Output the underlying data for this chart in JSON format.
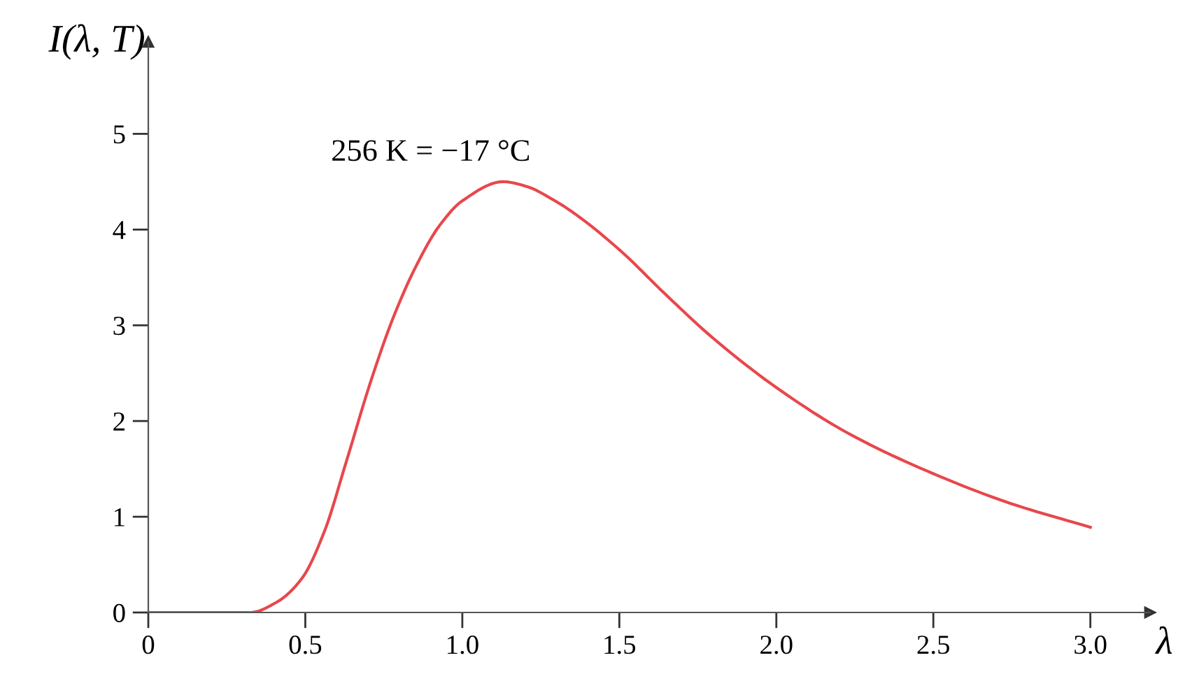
{
  "chart_data": {
    "type": "line",
    "xlabel": "λ",
    "ylabel": "I(λ, T)",
    "annotations": [
      "256 K = −17 °C"
    ],
    "x": [
      0,
      0.325,
      0.41,
      0.49,
      0.56,
      0.63,
      0.707,
      0.78,
      0.853,
      0.927,
      1.0,
      1.13,
      1.205,
      1.29,
      1.352,
      1.5,
      1.645,
      1.79,
      2.0,
      2.23,
      2.5,
      2.745,
      3.0
    ],
    "series": [
      {
        "color": "#e8474c",
        "values": [
          0,
          0,
          0.11,
          0.36,
          0.84,
          1.57,
          2.4,
          3.08,
          3.62,
          4.04,
          4.3,
          4.5,
          4.45,
          4.31,
          4.18,
          3.79,
          3.33,
          2.89,
          2.35,
          1.87,
          1.45,
          1.14,
          0.89
        ]
      }
    ],
    "xlim": [
      0,
      3.19
    ],
    "ylim": [
      0,
      5.96
    ],
    "xticks": [
      0,
      {
        "value": 0.5,
        "label": "0.5"
      },
      {
        "value": 1.0,
        "label": "1.0"
      },
      {
        "value": 1.5,
        "label": "1.5"
      },
      {
        "value": 2.0,
        "label": "2.0"
      },
      {
        "value": 2.5,
        "label": "2.5"
      },
      {
        "value": 3.0,
        "label": "3.0"
      }
    ],
    "yticks": [
      0,
      1,
      2,
      3,
      4,
      5
    ],
    "grid": false,
    "legend": false,
    "marker": "none",
    "line_style": "solid"
  }
}
